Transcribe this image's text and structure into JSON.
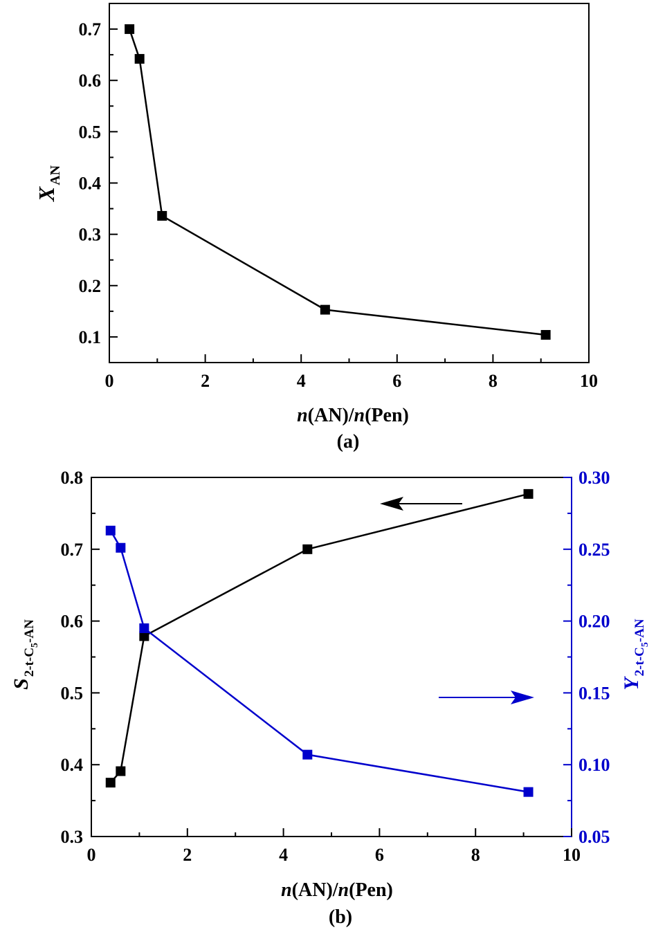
{
  "chart_data": [
    {
      "type": "line",
      "panel_label": "(a)",
      "xlabel": {
        "italic_1": "n",
        "text_1": "(AN)/",
        "italic_2": "n",
        "text_2": "(Pen)"
      },
      "ylabel": {
        "main": "X",
        "sub": "AN"
      },
      "xlim": [
        0,
        10
      ],
      "ylim": [
        0.05,
        0.75
      ],
      "x_ticks": [
        0,
        2,
        4,
        6,
        8,
        10
      ],
      "x_tick_labels": [
        "0",
        "2",
        "4",
        "6",
        "8",
        "10"
      ],
      "y_ticks": [
        0.1,
        0.2,
        0.3,
        0.4,
        0.5,
        0.6,
        0.7
      ],
      "y_tick_labels": [
        "0.1",
        "0.2",
        "0.3",
        "0.4",
        "0.5",
        "0.6",
        "0.7"
      ],
      "grid": false,
      "series": [
        {
          "name": "X_AN",
          "color": "#000000",
          "x": [
            0.42,
            0.63,
            1.1,
            4.5,
            9.1
          ],
          "y": [
            0.7,
            0.642,
            0.336,
            0.153,
            0.104
          ]
        }
      ]
    },
    {
      "type": "line",
      "panel_label": "(b)",
      "xlabel": {
        "italic_1": "n",
        "text_1": "(AN)/",
        "italic_2": "n",
        "text_2": "(Pen)"
      },
      "ylabel_left": {
        "main": "S",
        "sub": "2-t-C",
        "subsub": "5",
        "tail": "-AN"
      },
      "ylabel_right": {
        "main": "Y",
        "sub": "2-t-C",
        "subsub": "5",
        "tail": "-AN"
      },
      "xlim": [
        0,
        10
      ],
      "ylim_left": [
        0.3,
        0.8
      ],
      "ylim_right": [
        0.05,
        0.3
      ],
      "x_ticks": [
        0,
        2,
        4,
        6,
        8,
        10
      ],
      "x_tick_labels": [
        "0",
        "2",
        "4",
        "6",
        "8",
        "10"
      ],
      "y_left_ticks": [
        0.3,
        0.4,
        0.5,
        0.6,
        0.7,
        0.8
      ],
      "y_left_tick_labels": [
        "0.3",
        "0.4",
        "0.5",
        "0.6",
        "0.7",
        "0.8"
      ],
      "y_right_ticks": [
        0.05,
        0.1,
        0.15,
        0.2,
        0.25,
        0.3
      ],
      "y_right_tick_labels": [
        "0.05",
        "0.10",
        "0.15",
        "0.20",
        "0.25",
        "0.30"
      ],
      "grid": false,
      "series": [
        {
          "name": "S_2-t-C5-AN",
          "axis": "left",
          "color": "#000000",
          "x": [
            0.4,
            0.61,
            1.1,
            4.5,
            9.1
          ],
          "y": [
            0.375,
            0.391,
            0.579,
            0.7,
            0.777
          ]
        },
        {
          "name": "Y_2-t-C5-AN",
          "axis": "right",
          "color": "#0000cc",
          "x": [
            0.4,
            0.61,
            1.1,
            4.5,
            9.1
          ],
          "y": [
            0.263,
            0.251,
            0.195,
            0.107,
            0.081
          ]
        }
      ],
      "annotations": [
        {
          "type": "arrow",
          "points_to": "left-axis",
          "color": "#000000"
        },
        {
          "type": "arrow",
          "points_to": "right-axis",
          "color": "#0000cc"
        }
      ]
    }
  ]
}
